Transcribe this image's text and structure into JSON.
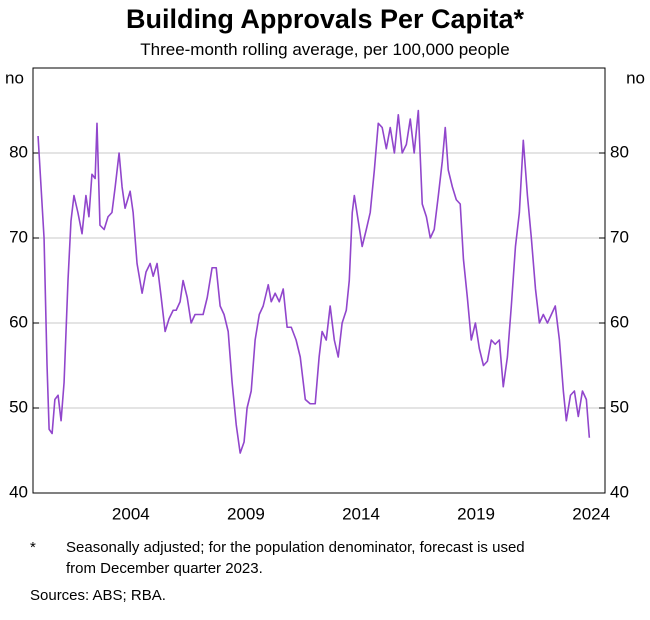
{
  "chart_data": {
    "type": "line",
    "title": "Building Approvals Per Capita*",
    "subtitle": "Three-month rolling average, per 100,000 people",
    "y_unit_left": "no",
    "y_unit_right": "no",
    "footnote": {
      "marker": "*",
      "lines": [
        "Seasonally adjusted; for the population denominator, forecast is used",
        "from December quarter 2023."
      ]
    },
    "source": "Sources: ABS; RBA.",
    "xlim": [
      2000.25,
      2025.1
    ],
    "xticks": [
      {
        "value": 2004.5,
        "label": "2004"
      },
      {
        "value": 2009.5,
        "label": "2009"
      },
      {
        "value": 2014.5,
        "label": "2014"
      },
      {
        "value": 2019.5,
        "label": "2019"
      },
      {
        "value": 2024.5,
        "label": "2024"
      }
    ],
    "ylim": [
      40,
      90
    ],
    "yticks": [
      40,
      50,
      60,
      70,
      80
    ],
    "grid": true,
    "series": [
      {
        "name": "Building approvals per capita",
        "color": "#9146cc",
        "x": [
          2000.47,
          2000.73,
          2000.86,
          2000.95,
          2001.08,
          2001.2,
          2001.34,
          2001.47,
          2001.6,
          2001.77,
          2001.9,
          2002.03,
          2002.2,
          2002.38,
          2002.55,
          2002.68,
          2002.81,
          2002.95,
          2003.03,
          2003.16,
          2003.34,
          2003.51,
          2003.68,
          2003.82,
          2003.99,
          2004.12,
          2004.25,
          2004.47,
          2004.6,
          2004.77,
          2004.99,
          2005.16,
          2005.34,
          2005.47,
          2005.64,
          2005.82,
          2005.99,
          2006.16,
          2006.34,
          2006.47,
          2006.64,
          2006.77,
          2006.95,
          2007.12,
          2007.29,
          2007.47,
          2007.64,
          2007.82,
          2008.03,
          2008.21,
          2008.38,
          2008.55,
          2008.73,
          2008.9,
          2009.08,
          2009.25,
          2009.42,
          2009.55,
          2009.73,
          2009.9,
          2010.08,
          2010.25,
          2010.47,
          2010.6,
          2010.77,
          2010.95,
          2011.12,
          2011.29,
          2011.47,
          2011.68,
          2011.86,
          2012.08,
          2012.29,
          2012.51,
          2012.68,
          2012.81,
          2012.99,
          2013.16,
          2013.34,
          2013.51,
          2013.68,
          2013.86,
          2013.99,
          2014.12,
          2014.21,
          2014.38,
          2014.55,
          2014.73,
          2014.9,
          2015.08,
          2015.25,
          2015.42,
          2015.6,
          2015.77,
          2015.95,
          2016.12,
          2016.29,
          2016.47,
          2016.64,
          2016.81,
          2016.99,
          2017.16,
          2017.34,
          2017.51,
          2017.68,
          2017.86,
          2018.03,
          2018.16,
          2018.29,
          2018.47,
          2018.64,
          2018.81,
          2018.95,
          2019.12,
          2019.29,
          2019.47,
          2019.64,
          2019.82,
          2019.99,
          2020.16,
          2020.33,
          2020.51,
          2020.68,
          2020.86,
          2021.03,
          2021.21,
          2021.38,
          2021.55,
          2021.73,
          2021.9,
          2022.08,
          2022.25,
          2022.42,
          2022.6,
          2022.77,
          2022.94,
          2023.12,
          2023.29,
          2023.42,
          2023.6,
          2023.77,
          2023.94,
          2024.12,
          2024.29,
          2024.42
        ],
        "values": [
          82,
          70,
          55,
          47.5,
          47,
          51,
          51.5,
          48.5,
          53,
          65,
          72,
          75,
          73,
          70.5,
          75,
          72.5,
          77.5,
          77,
          83.5,
          71.5,
          71,
          72.5,
          73,
          76,
          80,
          76,
          73.5,
          75.5,
          73,
          67,
          63.5,
          66,
          67,
          65.5,
          67,
          63,
          59,
          60.5,
          61.5,
          61.5,
          62.5,
          65,
          63,
          60,
          61,
          61,
          61,
          63,
          66.5,
          66.5,
          62,
          61,
          59,
          53,
          48,
          44.7,
          46,
          50,
          52,
          58,
          61,
          62,
          64.5,
          62.5,
          63.5,
          62.5,
          64,
          59.5,
          59.5,
          58,
          56,
          51,
          50.5,
          50.5,
          56,
          59,
          58,
          62,
          58,
          56,
          60,
          61.5,
          65,
          73,
          75,
          72,
          69,
          71,
          73,
          78,
          83.5,
          83,
          80.5,
          83,
          80,
          84.5,
          80,
          81,
          84,
          80,
          85,
          74,
          72.5,
          70,
          71,
          75,
          79,
          83,
          78,
          76,
          74.5,
          74,
          67.5,
          63,
          58,
          60,
          57,
          55,
          55.5,
          58,
          57.5,
          58,
          52.5,
          56,
          62,
          69,
          73,
          81.5,
          75,
          70,
          64,
          60,
          61,
          60,
          61,
          62,
          58,
          52,
          48.5,
          51.5,
          52,
          49,
          52,
          51,
          46.5
        ]
      }
    ]
  }
}
